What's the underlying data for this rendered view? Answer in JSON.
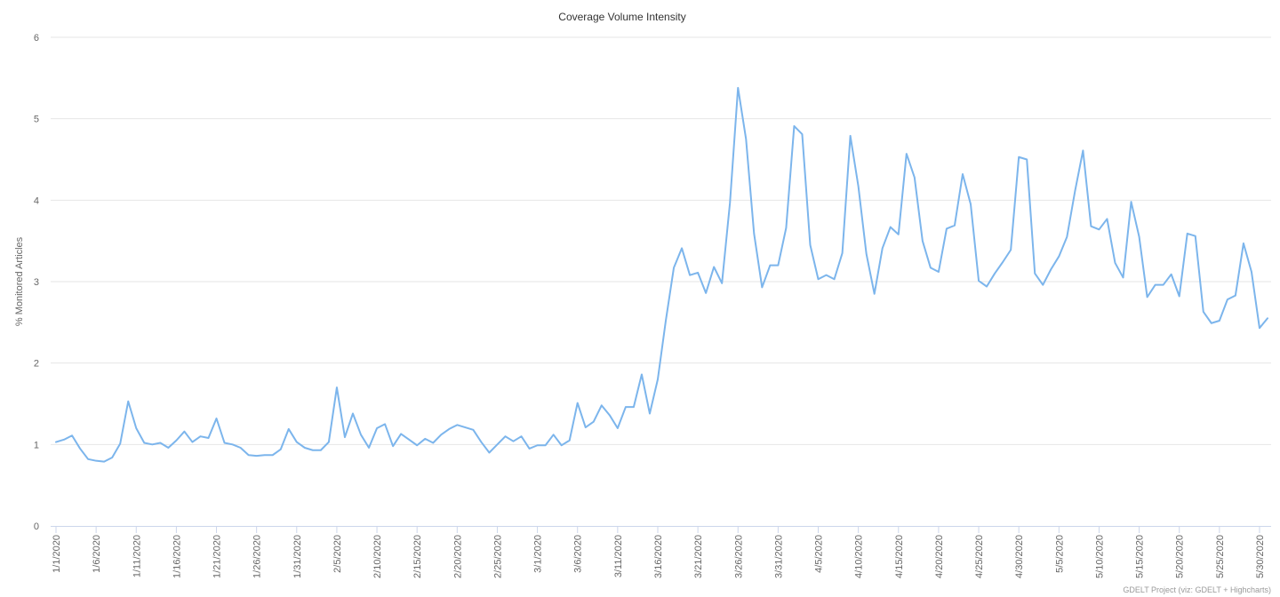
{
  "chart_data": {
    "type": "line",
    "title": "Coverage Volume Intensity",
    "xlabel": "",
    "ylabel": "% Monitored Articles",
    "ylim": [
      0,
      6
    ],
    "yticks": [
      0,
      1,
      2,
      3,
      4,
      5,
      6
    ],
    "grid": true,
    "x_start": "1/1/2020",
    "x_tick_labels": [
      "1/1/2020",
      "1/6/2020",
      "1/11/2020",
      "1/16/2020",
      "1/21/2020",
      "1/26/2020",
      "1/31/2020",
      "2/5/2020",
      "2/10/2020",
      "2/15/2020",
      "2/20/2020",
      "2/25/2020",
      "3/1/2020",
      "3/6/2020",
      "3/11/2020",
      "3/16/2020",
      "3/21/2020",
      "3/26/2020",
      "3/31/2020",
      "4/5/2020",
      "4/10/2020",
      "4/15/2020",
      "4/20/2020",
      "4/25/2020",
      "4/30/2020",
      "5/5/2020",
      "5/10/2020",
      "5/15/2020",
      "5/20/2020",
      "5/25/2020",
      "5/30/2020"
    ],
    "series": [
      {
        "name": "",
        "color": "#7cb5ec",
        "values": [
          1.03,
          1.06,
          1.11,
          0.95,
          0.82,
          0.8,
          0.79,
          0.84,
          1.01,
          1.53,
          1.2,
          1.02,
          1.0,
          1.02,
          0.96,
          1.05,
          1.16,
          1.03,
          1.1,
          1.08,
          1.32,
          1.02,
          1.0,
          0.96,
          0.87,
          0.86,
          0.87,
          0.87,
          0.94,
          1.19,
          1.03,
          0.96,
          0.93,
          0.93,
          1.03,
          1.7,
          1.09,
          1.38,
          1.12,
          0.96,
          1.2,
          1.25,
          0.98,
          1.13,
          1.06,
          0.99,
          1.07,
          1.02,
          1.12,
          1.19,
          1.24,
          1.21,
          1.18,
          1.03,
          0.9,
          1.0,
          1.1,
          1.04,
          1.1,
          0.95,
          0.99,
          0.99,
          1.12,
          0.99,
          1.05,
          1.51,
          1.21,
          1.28,
          1.48,
          1.36,
          1.2,
          1.46,
          1.46,
          1.86,
          1.38,
          1.8,
          2.52,
          3.17,
          3.41,
          3.08,
          3.11,
          2.86,
          3.18,
          2.98,
          3.97,
          5.38,
          4.75,
          3.59,
          2.93,
          3.2,
          3.2,
          3.66,
          4.91,
          4.81,
          3.45,
          3.03,
          3.08,
          3.03,
          3.35,
          4.79,
          4.17,
          3.34,
          2.85,
          3.41,
          3.67,
          3.58,
          4.57,
          4.28,
          3.5,
          3.17,
          3.12,
          3.65,
          3.69,
          4.32,
          3.95,
          3.01,
          2.94,
          3.1,
          3.24,
          3.39,
          4.53,
          4.5,
          3.1,
          2.96,
          3.15,
          3.31,
          3.55,
          4.11,
          4.61,
          3.68,
          3.64,
          3.77,
          3.23,
          3.05,
          3.98,
          3.55,
          2.81,
          2.96,
          2.96,
          3.09,
          2.82,
          3.59,
          3.56,
          2.63,
          2.49,
          2.52,
          2.78,
          2.83,
          3.47,
          3.12,
          2.43,
          2.55
        ]
      }
    ],
    "credit": "GDELT Project (viz: GDELT + Highcharts)"
  }
}
